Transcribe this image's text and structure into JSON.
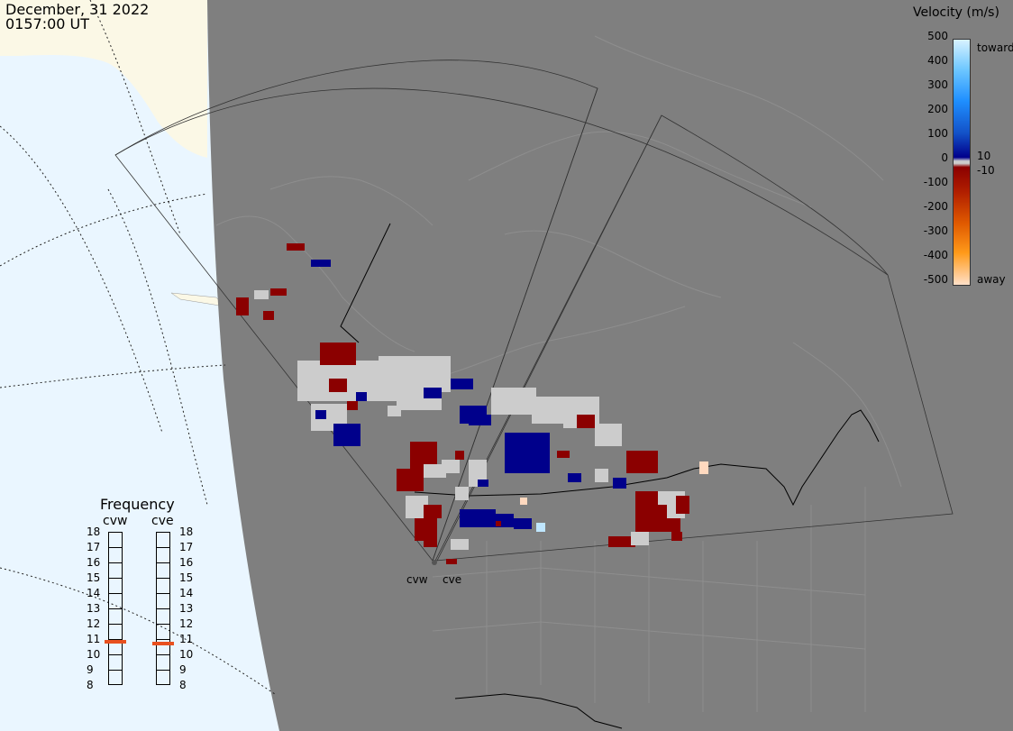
{
  "header": {
    "date": "December, 31 2022",
    "time": "0157:00 UT"
  },
  "legend": {
    "title": "Velocity (m/s)",
    "ticks": [
      "500",
      "400",
      "300",
      "200",
      "100",
      "0",
      "-100",
      "-200",
      "-300",
      "-400",
      "-500"
    ],
    "toward_label": "toward",
    "away_label": "away",
    "threshold_pos": "10",
    "threshold_neg": "-10",
    "colors": {
      "toward_high": "#cfefff",
      "toward_mid": "#1e8fff",
      "toward_low": "#00008b",
      "zero": "#cccccc",
      "away_low": "#8b0000",
      "away_mid": "#ff8c00",
      "away_high": "#ffe0c8"
    }
  },
  "frequency": {
    "title": "Frequency",
    "radars": [
      {
        "name": "cvw",
        "value": 10.8
      },
      {
        "name": "cve",
        "value": 10.7
      }
    ],
    "scale": [
      "18",
      "17",
      "16",
      "15",
      "14",
      "13",
      "12",
      "11",
      "10",
      "9",
      "8"
    ],
    "marker_color": "#e8501e"
  },
  "radars": {
    "west": "cvw",
    "east": "cve"
  },
  "colors": {
    "land": "#7f7f7f",
    "night_boundary_ocean": "#eaf6ff",
    "sunlit_land": "#fbf8e6",
    "ground_scatter": "#cccccc"
  }
}
